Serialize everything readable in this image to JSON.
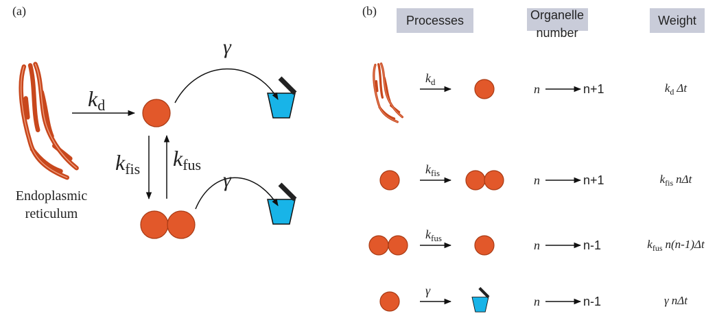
{
  "panel_a": {
    "label": "(a)",
    "er_label": [
      "Endoplasmic",
      "reticulum"
    ],
    "kd": {
      "symbol": "k",
      "subscript": "d"
    },
    "gamma_top": "γ",
    "kfis": {
      "symbol": "k",
      "subscript": "fis"
    },
    "kfus": {
      "symbol": "k",
      "subscript": "fus"
    },
    "gamma_bottom": "γ"
  },
  "panel_b": {
    "label": "(b)",
    "headers": {
      "processes": "Processes",
      "organelle_number": [
        "Organelle",
        "number"
      ],
      "weight": "Weight"
    },
    "rows": [
      {
        "rate": {
          "symbol": "k",
          "subscript": "d"
        },
        "from": "n",
        "to": "n+1",
        "weight": {
          "symbol": "k",
          "subscript": "d",
          "rest": "Δt"
        }
      },
      {
        "rate": {
          "symbol": "k",
          "subscript": "fis"
        },
        "from": "n",
        "to": "n+1",
        "weight": {
          "symbol": "k",
          "subscript": "fis",
          "rest": "nΔt"
        }
      },
      {
        "rate": {
          "symbol": "k",
          "subscript": "fus"
        },
        "from": "n",
        "to": "n-1",
        "weight": {
          "symbol": "k",
          "subscript": "fus",
          "rest": "n(n-1)Δt"
        }
      },
      {
        "rate": {
          "symbol": "γ"
        },
        "from": "n",
        "to": "n-1",
        "weight": {
          "symbol": "γ",
          "rest": "nΔt"
        }
      }
    ]
  }
}
